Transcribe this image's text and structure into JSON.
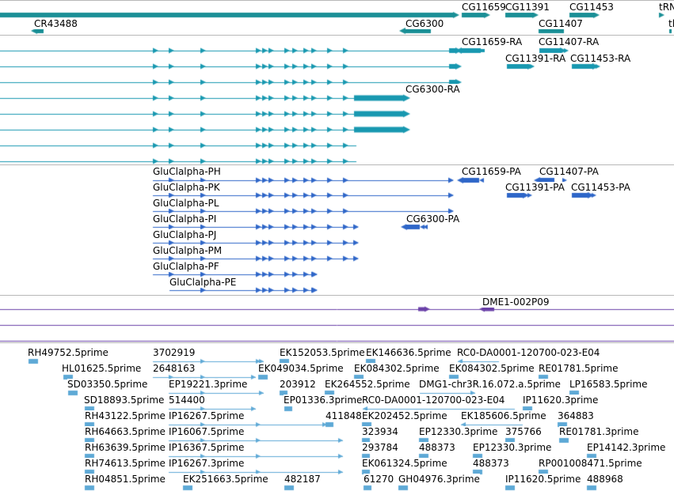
{
  "colors": {
    "gene_track": "#1a8f96",
    "mrna_track": "#1898b0",
    "protein_track": "#2e66c8",
    "clone_track": "#6a40a8",
    "est_track": "#5ea9d6",
    "separator": "#b8b8b8",
    "label_text": "#000000"
  },
  "icons": {
    "gene_glyph": "gene-bar-icon",
    "transcript_glyph": "transcript-arrow-icon",
    "protein_glyph": "protein-arrow-icon",
    "clone_glyph": "clone-arrow-icon",
    "est_glyph": "est-arrow-icon"
  },
  "genes": [
    {
      "id": "cg11659",
      "label": "CG11659"
    },
    {
      "id": "cg11391",
      "label": "CG11391"
    },
    {
      "id": "cg11453",
      "label": "CG11453"
    },
    {
      "id": "trn",
      "label": "tRN"
    },
    {
      "id": "cr43488",
      "label": "CR43488"
    },
    {
      "id": "cg6300",
      "label": "CG6300"
    },
    {
      "id": "cg11407",
      "label": "CG11407"
    },
    {
      "id": "tl",
      "label": "tl"
    }
  ],
  "transcripts": [
    {
      "id": "cg11659-ra",
      "label": "CG11659-RA"
    },
    {
      "id": "cg11407-ra",
      "label": "CG11407-RA"
    },
    {
      "id": "cg11391-ra",
      "label": "CG11391-RA"
    },
    {
      "id": "cg11453-ra",
      "label": "CG11453-RA"
    },
    {
      "id": "cg6300-ra",
      "label": "CG6300-RA"
    }
  ],
  "proteins": [
    {
      "id": "gluclalpha-ph",
      "label": "GluClalpha-PH"
    },
    {
      "id": "cg11659-pa",
      "label": "CG11659-PA"
    },
    {
      "id": "cg11407-pa",
      "label": "CG11407-PA"
    },
    {
      "id": "gluclalpha-pk",
      "label": "GluClalpha-PK"
    },
    {
      "id": "cg11391-pa",
      "label": "CG11391-PA"
    },
    {
      "id": "cg11453-pa",
      "label": "CG11453-PA"
    },
    {
      "id": "gluclalpha-pl",
      "label": "GluClalpha-PL"
    },
    {
      "id": "gluclalpha-pi",
      "label": "GluClalpha-PI"
    },
    {
      "id": "cg6300-pa",
      "label": "CG6300-PA"
    },
    {
      "id": "gluclalpha-pj",
      "label": "GluClalpha-PJ"
    },
    {
      "id": "gluclalpha-pm",
      "label": "GluClalpha-PM"
    },
    {
      "id": "gluclalpha-pf",
      "label": "GluClalpha-PF"
    },
    {
      "id": "gluclalpha-pe",
      "label": "GluClalpha-PE"
    }
  ],
  "clones": [
    {
      "id": "dme1-002p09",
      "label": "DME1-002P09"
    }
  ],
  "ests": [
    {
      "id": "est-rh49752",
      "label": "RH49752.5prime"
    },
    {
      "id": "est-3702919",
      "label": "3702919"
    },
    {
      "id": "est-ek152053",
      "label": "EK152053.5prime"
    },
    {
      "id": "est-ek146636",
      "label": "EK146636.5prime"
    },
    {
      "id": "est-rc0-e04-a",
      "label": "RC0-DA0001-120700-023-E04"
    },
    {
      "id": "est-hl01625",
      "label": "HL01625.5prime"
    },
    {
      "id": "est-2648163",
      "label": "2648163"
    },
    {
      "id": "est-ek049034",
      "label": "EK049034.5prime"
    },
    {
      "id": "est-ek084302-a",
      "label": "EK084302.5prime"
    },
    {
      "id": "est-ek084302-b",
      "label": "EK084302.5prime"
    },
    {
      "id": "est-re01781-a",
      "label": "RE01781.5prime"
    },
    {
      "id": "est-sd03350",
      "label": "SD03350.5prime"
    },
    {
      "id": "est-ep19221",
      "label": "EP19221.3prime"
    },
    {
      "id": "est-203912",
      "label": "203912"
    },
    {
      "id": "est-ek264552",
      "label": "EK264552.5prime"
    },
    {
      "id": "est-dmg1",
      "label": "DMG1-chr3R.16.072.a.5prime"
    },
    {
      "id": "est-lp16583",
      "label": "LP16583.5prime"
    },
    {
      "id": "est-sd18893",
      "label": "SD18893.5prime"
    },
    {
      "id": "est-514400",
      "label": "514400"
    },
    {
      "id": "est-ep01336",
      "label": "EP01336.3prime"
    },
    {
      "id": "est-rc0-e04-b",
      "label": "RC0-DA0001-120700-023-E04"
    },
    {
      "id": "est-ip11620-3",
      "label": "IP11620.3prime"
    },
    {
      "id": "est-rh43122",
      "label": "RH43122.5prime"
    },
    {
      "id": "est-ip16267-5",
      "label": "IP16267.5prime"
    },
    {
      "id": "est-411848",
      "label": "411848"
    },
    {
      "id": "est-ek202452",
      "label": "EK202452.5prime"
    },
    {
      "id": "est-ek185606",
      "label": "EK185606.5prime"
    },
    {
      "id": "est-364883",
      "label": "364883"
    },
    {
      "id": "est-rh64663",
      "label": "RH64663.5prime"
    },
    {
      "id": "est-ip16067",
      "label": "IP16067.5prime"
    },
    {
      "id": "est-323934",
      "label": "323934"
    },
    {
      "id": "est-ep12330-a",
      "label": "EP12330.3prime"
    },
    {
      "id": "est-375766",
      "label": "375766"
    },
    {
      "id": "est-re01781-b",
      "label": "RE01781.3prime"
    },
    {
      "id": "est-rh63639",
      "label": "RH63639.5prime"
    },
    {
      "id": "est-ip16367",
      "label": "IP16367.5prime"
    },
    {
      "id": "est-293784",
      "label": "293784"
    },
    {
      "id": "est-488373-a",
      "label": "488373"
    },
    {
      "id": "est-ep12330-b",
      "label": "EP12330.3prime"
    },
    {
      "id": "est-ep14142",
      "label": "EP14142.3prime"
    },
    {
      "id": "est-rh74613",
      "label": "RH74613.5prime"
    },
    {
      "id": "est-ip16267-3",
      "label": "IP16267.3prime"
    },
    {
      "id": "est-ek061324",
      "label": "EK061324.5prime"
    },
    {
      "id": "est-488373-b",
      "label": "488373"
    },
    {
      "id": "est-rp001008471",
      "label": "RP001008471.5prime"
    },
    {
      "id": "est-rh04851",
      "label": "RH04851.5prime"
    },
    {
      "id": "est-ek251663",
      "label": "EK251663.5prime"
    },
    {
      "id": "est-482187",
      "label": "482187"
    },
    {
      "id": "est-61270",
      "label": "61270"
    },
    {
      "id": "est-gh04976",
      "label": "GH04976.3prime"
    },
    {
      "id": "est-ip11620-5",
      "label": "IP11620.5prime"
    },
    {
      "id": "est-488968",
      "label": "488968"
    }
  ]
}
